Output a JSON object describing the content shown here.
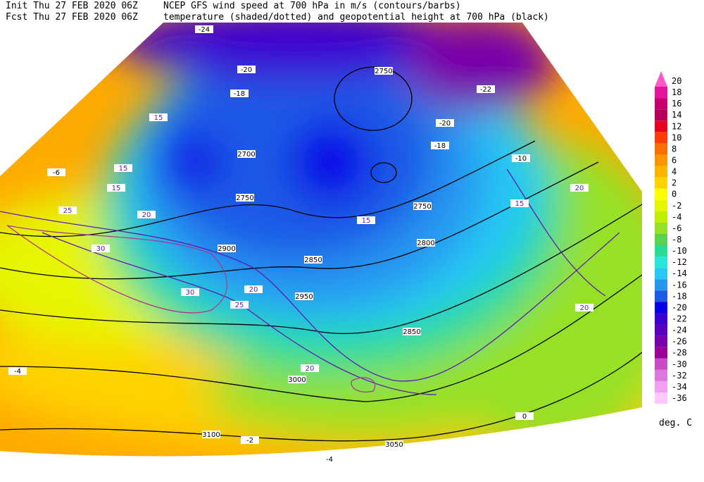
{
  "header": {
    "init": "Init  Thu 27 FEB 2020 06Z",
    "fcst": "Fcst Thu 27 FEB 2020 06Z",
    "title": "NCEP GFS wind speed at 700 hPa in m/s (contours/barbs)",
    "subtitle": "temperature (shaded/dotted) and geopotential height at 700 hPa (black)"
  },
  "colorbar": {
    "levels": [
      20,
      18,
      16,
      14,
      12,
      10,
      8,
      6,
      4,
      2,
      0,
      -2,
      -4,
      -6,
      -8,
      -10,
      -12,
      -14,
      -16,
      -18,
      -20,
      -22,
      -24,
      -26,
      -28,
      -30,
      -32,
      -34,
      -36
    ],
    "colors": [
      "#ff5ac8",
      "#e6149b",
      "#c8006e",
      "#b4005a",
      "#e6001e",
      "#ff3c00",
      "#ff6e00",
      "#ff9600",
      "#ffb400",
      "#ffd200",
      "#ffff00",
      "#e6f500",
      "#bef000",
      "#96e128",
      "#5ad250",
      "#28dc96",
      "#28e6dc",
      "#28c8f5",
      "#2896f0",
      "#1e5ae6",
      "#0a00e6",
      "#3c00d2",
      "#5a00be",
      "#7800aa",
      "#9b0096",
      "#c84bc8",
      "#dc78dc",
      "#f0a0f0",
      "#ffc8ff"
    ],
    "unit": "deg. C"
  },
  "map_labels": {
    "heights": [
      2700,
      2750,
      2750,
      2750,
      2800,
      2850,
      2900,
      2950,
      3000,
      3050,
      3100,
      2850
    ],
    "winds": [
      15,
      15,
      15,
      20,
      20,
      20,
      25,
      25,
      30,
      30,
      15,
      20,
      15,
      20
    ],
    "temps": [
      -24,
      -20,
      -18,
      -20,
      -22,
      -18,
      -10,
      -4,
      -2,
      0,
      -6,
      -4
    ]
  }
}
